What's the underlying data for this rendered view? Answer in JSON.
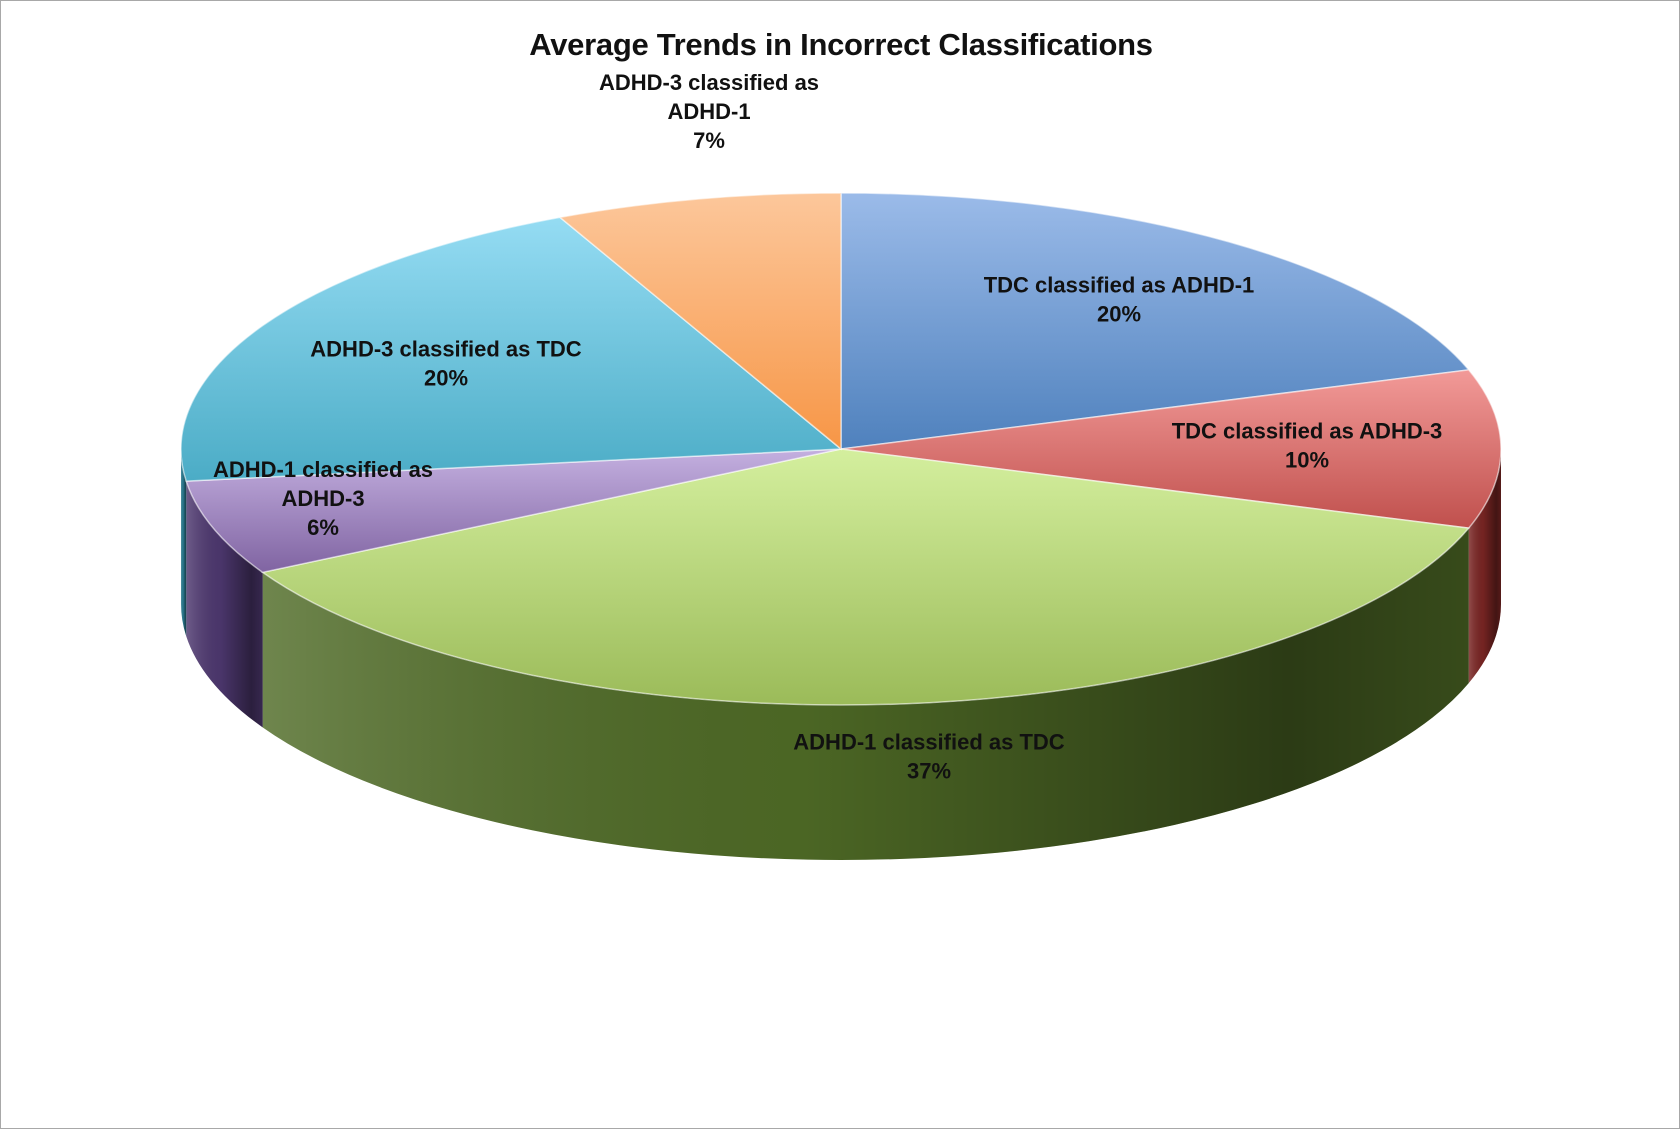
{
  "chart_data": {
    "type": "pie",
    "title": "Average Trends in Incorrect Classifications",
    "slices": [
      {
        "label_lines": [
          "TDC classified as ADHD-1"
        ],
        "pct_text": "20%",
        "value": 20,
        "color": "#4f81bd",
        "light": "#9bbbe9",
        "side": "#2f5a8f"
      },
      {
        "label_lines": [
          "TDC classified as ADHD-3"
        ],
        "pct_text": "10%",
        "value": 10,
        "color": "#c0504d",
        "light": "#f29a98",
        "side": "#7a2523"
      },
      {
        "label_lines": [
          "ADHD-1 classified as TDC"
        ],
        "pct_text": "37%",
        "value": 37,
        "color": "#9bbb59",
        "light": "#d4ef9e",
        "side": "#4f6b26"
      },
      {
        "label_lines": [
          "ADHD-1 classified as",
          "ADHD-3"
        ],
        "pct_text": "6%",
        "value": 6,
        "color": "#8064a2",
        "light": "#c4b0e0",
        "side": "#4e3870"
      },
      {
        "label_lines": [
          "ADHD-3 classified as TDC"
        ],
        "pct_text": "20%",
        "value": 20,
        "color": "#4bacc6",
        "light": "#95dcf3",
        "side": "#2a7a90"
      },
      {
        "label_lines": [
          "ADHD-3 classified as",
          "ADHD-1"
        ],
        "pct_text": "7%",
        "value": 7,
        "color": "#f79646",
        "light": "#fcc79b",
        "side": "#b0601c"
      }
    ]
  }
}
